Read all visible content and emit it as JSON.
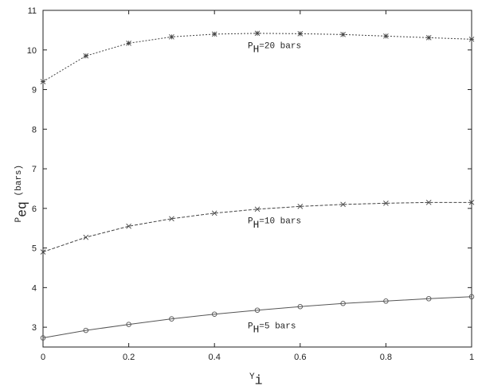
{
  "chart_data": {
    "type": "line",
    "x": [
      0,
      0.1,
      0.2,
      0.3,
      0.4,
      0.5,
      0.6,
      0.7,
      0.8,
      0.9,
      1
    ],
    "series": [
      {
        "name": {
          "main": "P",
          "sub": "H",
          "text": "=20 bars"
        },
        "color": "#444",
        "marker": "asterisk",
        "dash": "dotted",
        "values": [
          9.2,
          9.85,
          10.17,
          10.33,
          10.4,
          10.42,
          10.41,
          10.39,
          10.35,
          10.31,
          10.27
        ]
      },
      {
        "name": {
          "main": "P",
          "sub": "H",
          "text": "=10 bars"
        },
        "color": "#444",
        "marker": "x",
        "dash": "dashed",
        "values": [
          4.9,
          5.27,
          5.55,
          5.74,
          5.88,
          5.98,
          6.05,
          6.1,
          6.13,
          6.15,
          6.15
        ]
      },
      {
        "name": {
          "main": "P",
          "sub": "H",
          "text": "=5 bars"
        },
        "color": "#555",
        "marker": "circle",
        "dash": "solid",
        "values": [
          2.73,
          2.92,
          3.07,
          3.21,
          3.33,
          3.43,
          3.52,
          3.6,
          3.66,
          3.72,
          3.77
        ]
      }
    ],
    "xlabel": {
      "main": "Y",
      "sub": "i"
    },
    "ylabel": {
      "main": "P",
      "sub": "eq",
      "text": " (bars)"
    },
    "xlim": [
      0,
      1
    ],
    "xticks": [
      0,
      0.2,
      0.4,
      0.6,
      0.8,
      1
    ],
    "ylim": [
      2.5,
      11
    ],
    "yticks": [
      3,
      4,
      5,
      6,
      7,
      8,
      9,
      10,
      11
    ],
    "grid": false
  }
}
